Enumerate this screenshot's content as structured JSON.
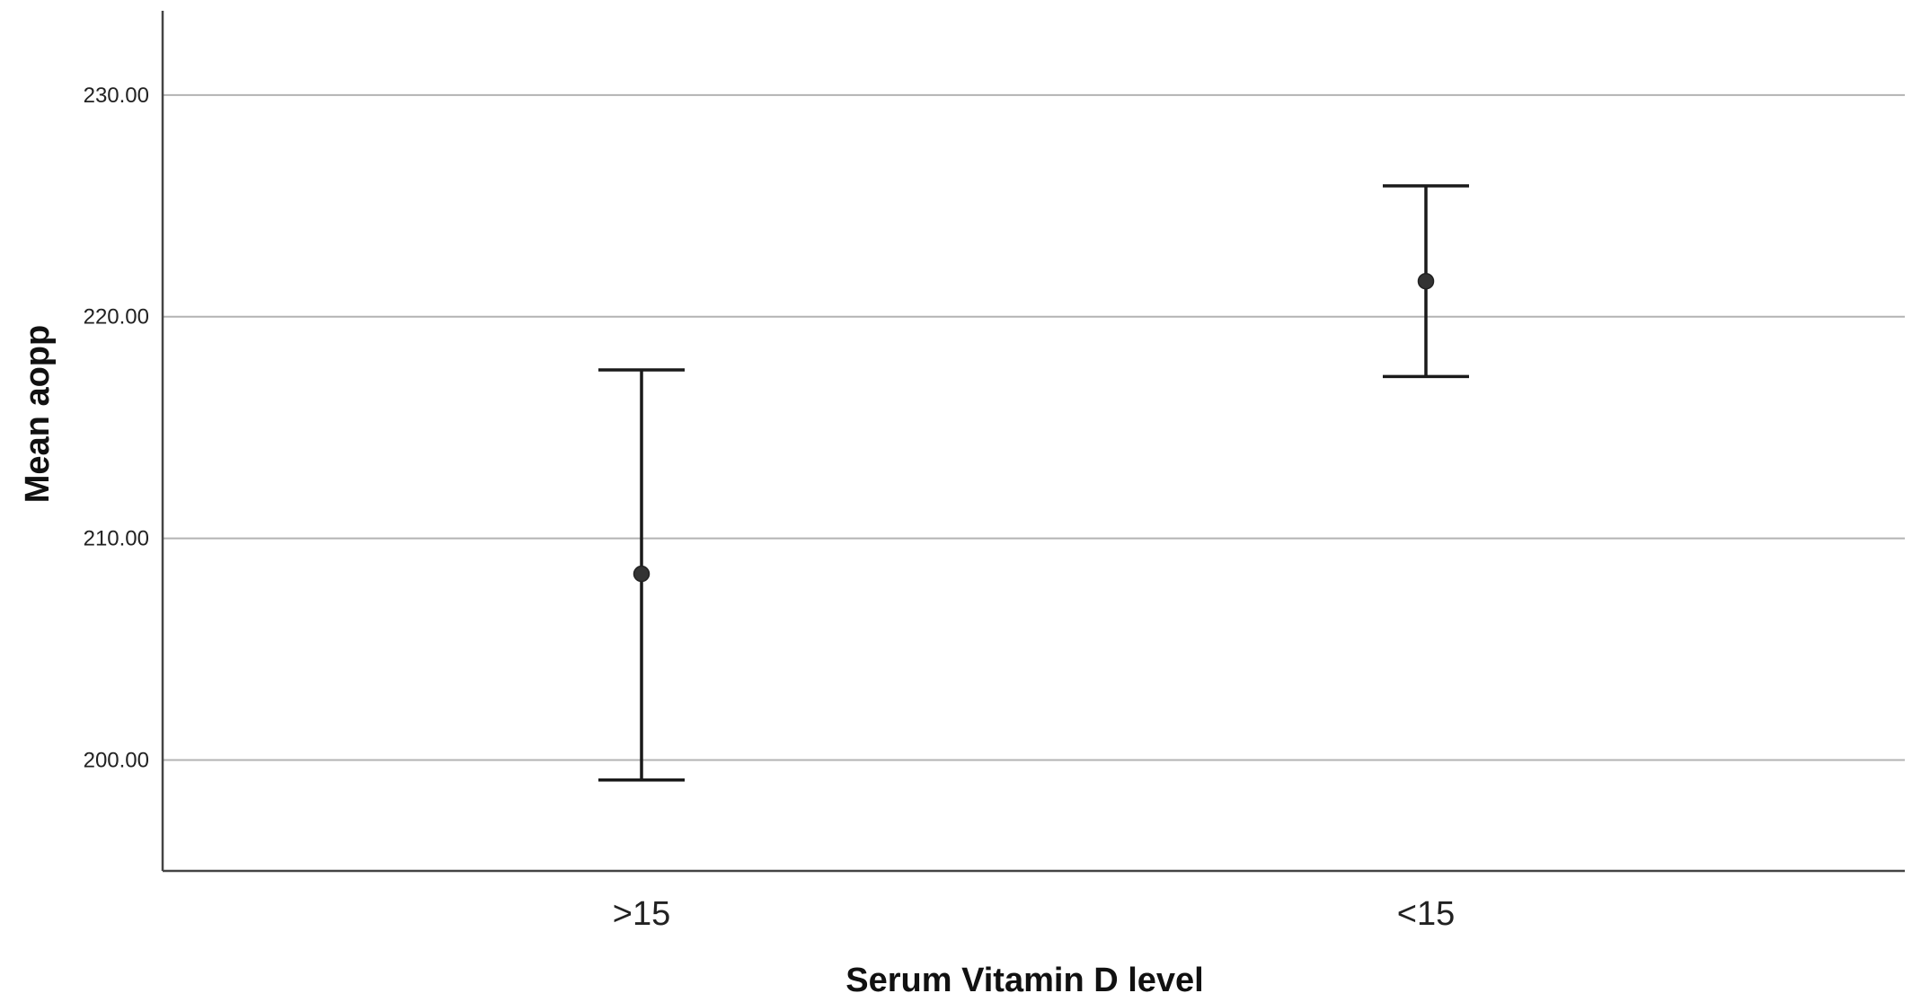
{
  "chart_data": {
    "type": "errorbar",
    "title": "",
    "xlabel": "Serum Vitamin D level",
    "ylabel": "Mean aopp",
    "categories": [
      ">15",
      "<15"
    ],
    "series": [
      {
        "means": [
          208.4,
          221.6
        ],
        "lower": [
          199.1,
          217.3
        ],
        "upper": [
          217.6,
          225.9
        ]
      }
    ],
    "ylim": [
      195.0,
      233.8
    ],
    "yticks": [
      200.0,
      210.0,
      220.0,
      230.0
    ],
    "ytick_labels": [
      "200.00",
      "210.00",
      "220.00",
      "230.00"
    ],
    "grid": true,
    "legend": "none",
    "colors": {
      "marker": "#333333",
      "errorbar": "#1a1a1a",
      "grid": "#b3b3b3",
      "axis": "#444444"
    }
  }
}
